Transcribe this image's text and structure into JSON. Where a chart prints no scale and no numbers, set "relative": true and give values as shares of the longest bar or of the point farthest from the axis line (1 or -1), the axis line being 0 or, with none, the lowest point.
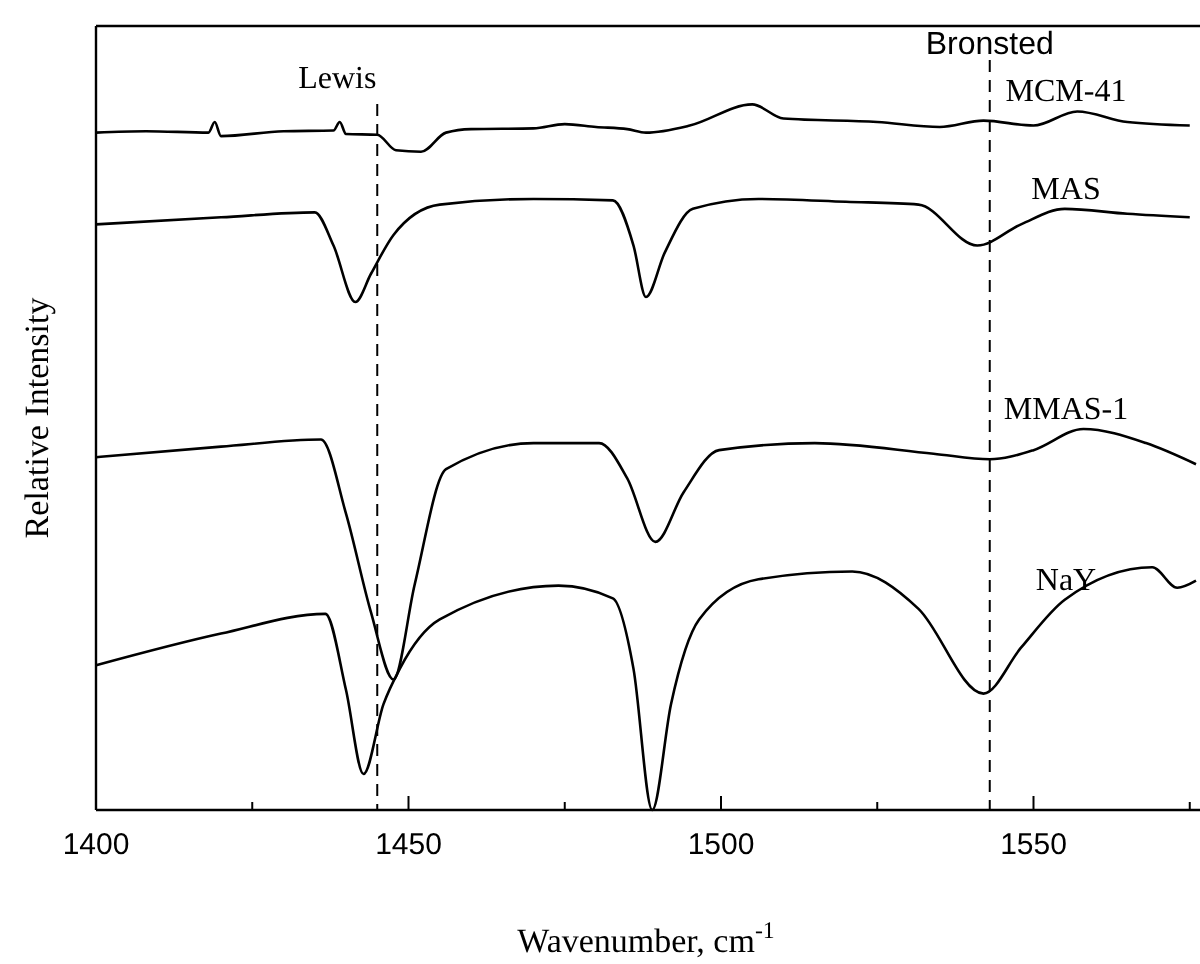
{
  "chart_data": {
    "type": "line",
    "relative": true,
    "xlabel": "Wavenumber, cm$^{-1}$",
    "ylabel": "Relative Intensity",
    "xlim": [
      1400,
      1576
    ],
    "xticks": [
      1400,
      {
        "value": 1425,
        "label": null
      },
      1450,
      {
        "value": 1475,
        "label": null
      },
      1500,
      {
        "value": 1525,
        "label": null
      },
      1550,
      {
        "value": 1575,
        "label": null
      }
    ],
    "line_style": "solid",
    "marker": "none",
    "grid": false,
    "ref_lines": [
      {
        "axis": "x",
        "value": 1445,
        "label": "Lewis",
        "line_style": "dashed",
        "color": "#000000"
      },
      {
        "axis": "x",
        "value": 1543,
        "label": "Bronsted",
        "line_style": "dashed",
        "color": "#000000"
      }
    ],
    "series": [
      {
        "name": "MCM-41",
        "color": "#000000",
        "x": [
          1400,
          1408,
          1418,
          1419,
          1420,
          1430,
          1438,
          1439,
          1440,
          1445,
          1448,
          1452,
          1456,
          1460,
          1470,
          1475,
          1480,
          1485,
          1488,
          1495,
          1505,
          1510,
          1525,
          1535,
          1542,
          1550,
          1557,
          1565,
          1575
        ],
        "values": [
          0.96,
          0.962,
          0.96,
          0.975,
          0.955,
          0.962,
          0.963,
          0.975,
          0.958,
          0.957,
          0.935,
          0.933,
          0.96,
          0.965,
          0.966,
          0.972,
          0.968,
          0.965,
          0.96,
          0.97,
          1.0,
          0.98,
          0.975,
          0.968,
          0.977,
          0.97,
          0.99,
          0.975,
          0.97
        ]
      },
      {
        "name": "MAS",
        "color": "#000000",
        "x": [
          1400,
          1420,
          1435,
          1438,
          1441.5,
          1444,
          1447.6,
          1455,
          1470,
          1482.7,
          1486,
          1488,
          1491,
          1495.5,
          1506,
          1520,
          1531.6,
          1541,
          1548,
          1555,
          1565,
          1575
        ],
        "values": [
          0.83,
          0.84,
          0.847,
          0.8,
          0.72,
          0.76,
          0.815,
          0.858,
          0.866,
          0.864,
          0.8,
          0.727,
          0.79,
          0.852,
          0.866,
          0.862,
          0.858,
          0.8,
          0.83,
          0.852,
          0.845,
          0.84
        ]
      },
      {
        "name": "MMAS-1",
        "color": "#000000",
        "x": [
          1400,
          1420,
          1436,
          1440,
          1444,
          1447.6,
          1451,
          1456,
          1470,
          1480.5,
          1485,
          1489.5,
          1494,
          1499.7,
          1515,
          1534,
          1543,
          1550,
          1558,
          1568,
          1576
        ],
        "values": [
          0.5,
          0.515,
          0.525,
          0.42,
          0.28,
          0.185,
          0.32,
          0.483,
          0.52,
          0.52,
          0.47,
          0.38,
          0.45,
          0.51,
          0.52,
          0.505,
          0.497,
          0.51,
          0.54,
          0.52,
          0.49
        ]
      },
      {
        "name": "NaY",
        "color": "#000000",
        "x": [
          1400,
          1420,
          1436.7,
          1440,
          1442.8,
          1446,
          1448.6,
          1455,
          1474,
          1482.7,
          1486,
          1489,
          1492,
          1496.5,
          1506,
          1521,
          1531.6,
          1542,
          1548,
          1555,
          1569,
          1573,
          1576
        ],
        "values": [
          0.205,
          0.25,
          0.278,
          0.17,
          0.051,
          0.15,
          0.2,
          0.27,
          0.318,
          0.3,
          0.2,
          0.0,
          0.15,
          0.27,
          0.327,
          0.338,
          0.285,
          0.165,
          0.23,
          0.298,
          0.344,
          0.315,
          0.325
        ]
      }
    ]
  }
}
